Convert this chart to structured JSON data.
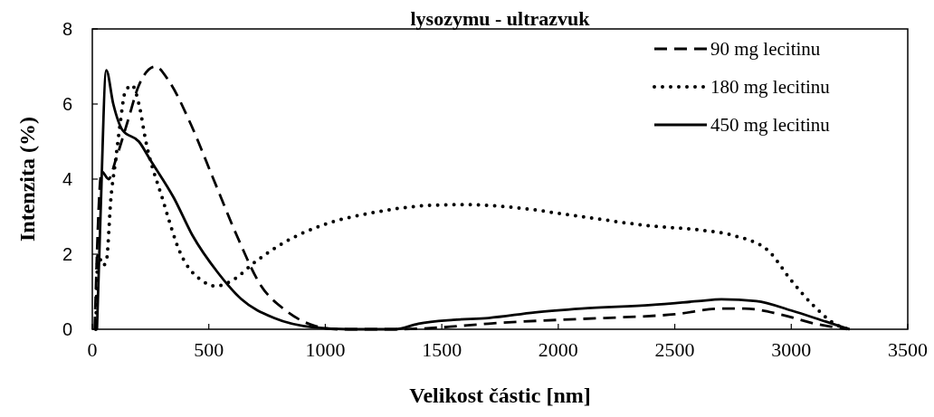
{
  "chart_data": {
    "type": "line",
    "title": "lysozymu - ultrazvuk",
    "xlabel": "Velikost částic [nm]",
    "ylabel": "Intenzita (%)",
    "xlim": [
      0,
      3500
    ],
    "xticks": [
      0,
      500,
      1000,
      1500,
      2000,
      2500,
      3000,
      3500
    ],
    "ylim": [
      0,
      8
    ],
    "yticks": [
      0,
      2,
      4,
      6,
      8
    ],
    "grid": false,
    "legend": "top right",
    "marker": "none",
    "series": [
      {
        "name": "90 mg lecitinu",
        "color": "#000000",
        "line_style": "dashed",
        "x": [
          10,
          40,
          70,
          100,
          150,
          200,
          270,
          330,
          420,
          520,
          620,
          720,
          830,
          950,
          1050,
          1300,
          1500,
          1700,
          2000,
          2200,
          2500,
          2700,
          2800,
          2950,
          3100,
          3250
        ],
        "values": [
          0,
          4.2,
          4,
          4.5,
          5.5,
          6.5,
          7,
          6.6,
          5.5,
          4,
          2.5,
          1.2,
          0.5,
          0.1,
          0,
          0,
          0.05,
          0.15,
          0.25,
          0.3,
          0.4,
          0.55,
          0.55,
          0.4,
          0.15,
          0
        ]
      },
      {
        "name": "180 mg lecitinu",
        "color": "#000000",
        "line_style": "dotted",
        "x": [
          15,
          25,
          45,
          60,
          80,
          100,
          120,
          140,
          170,
          200,
          230,
          300,
          380,
          470,
          530,
          600,
          700,
          820,
          1000,
          1200,
          1450,
          1600,
          1800,
          2100,
          2400,
          2600,
          2750,
          2900,
          3000,
          3100,
          3200,
          3250
        ],
        "values": [
          0,
          2,
          1.7,
          1.8,
          3.5,
          4.5,
          5.5,
          6.3,
          6.5,
          6,
          5,
          3.5,
          2,
          1.3,
          1.15,
          1.3,
          1.8,
          2.3,
          2.8,
          3.1,
          3.3,
          3.32,
          3.25,
          3,
          2.75,
          2.65,
          2.5,
          2.1,
          1.3,
          0.6,
          0.1,
          0
        ]
      },
      {
        "name": "450 mg lecitinu",
        "color": "#000000",
        "line_style": "solid",
        "x": [
          20,
          35,
          60,
          90,
          130,
          200,
          250,
          350,
          430,
          540,
          640,
          780,
          950,
          1100,
          1300,
          1400,
          1550,
          1700,
          1900,
          2100,
          2400,
          2600,
          2700,
          2850,
          3000,
          3150,
          3250
        ],
        "values": [
          0,
          3,
          6.9,
          6,
          5.3,
          5,
          4.5,
          3.5,
          2.5,
          1.5,
          0.8,
          0.3,
          0.05,
          0,
          0,
          0.15,
          0.25,
          0.3,
          0.45,
          0.55,
          0.65,
          0.75,
          0.8,
          0.75,
          0.5,
          0.2,
          0
        ]
      }
    ]
  }
}
